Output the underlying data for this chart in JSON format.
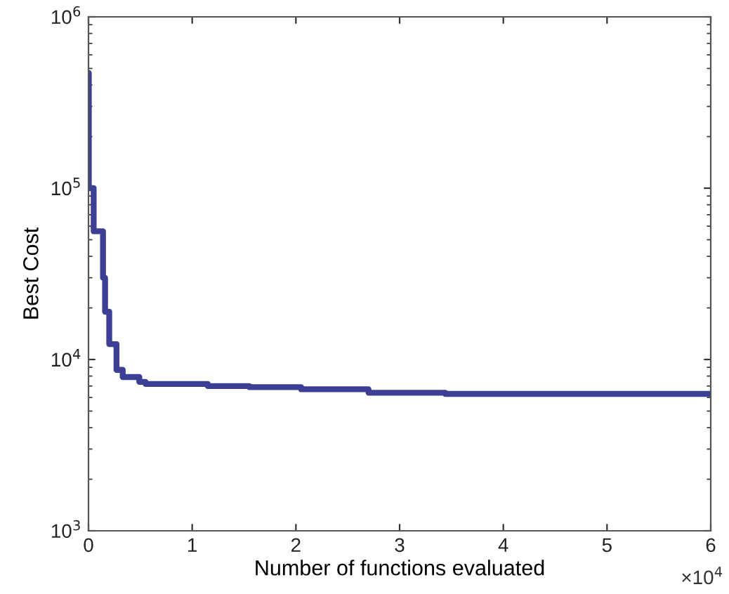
{
  "chart_data": {
    "type": "step",
    "xlabel": "Number of functions evaluated",
    "ylabel": "Best Cost",
    "log": "y",
    "grid": false,
    "legend": false,
    "x": [
      0,
      0.003,
      0.05,
      0.14,
      0.16,
      0.2,
      0.27,
      0.33,
      0.49,
      0.55,
      1.15,
      1.55,
      2.05,
      2.7,
      3.44,
      6
    ],
    "series": [
      {
        "color": "#3c3f94",
        "values": [
          470000,
          100000,
          56000,
          30000,
          19000,
          12300,
          8700,
          7900,
          7400,
          7200,
          7000,
          6900,
          6700,
          6400,
          6300,
          6300
        ]
      }
    ],
    "xlim": [
      0,
      6
    ],
    "xticks": [
      0,
      1,
      2,
      3,
      4,
      5,
      6
    ],
    "ylim": [
      1000,
      1000000
    ],
    "yticks": [
      {
        "value": 1000,
        "label": "10$^{3}$"
      },
      {
        "value": 10000,
        "label": "10$^{4}$"
      },
      {
        "value": 100000,
        "label": "10$^{5}$"
      },
      {
        "value": 1000000,
        "label": "10$^{6}$"
      }
    ],
    "annotations": [
      "×10$^{4}$"
    ]
  }
}
